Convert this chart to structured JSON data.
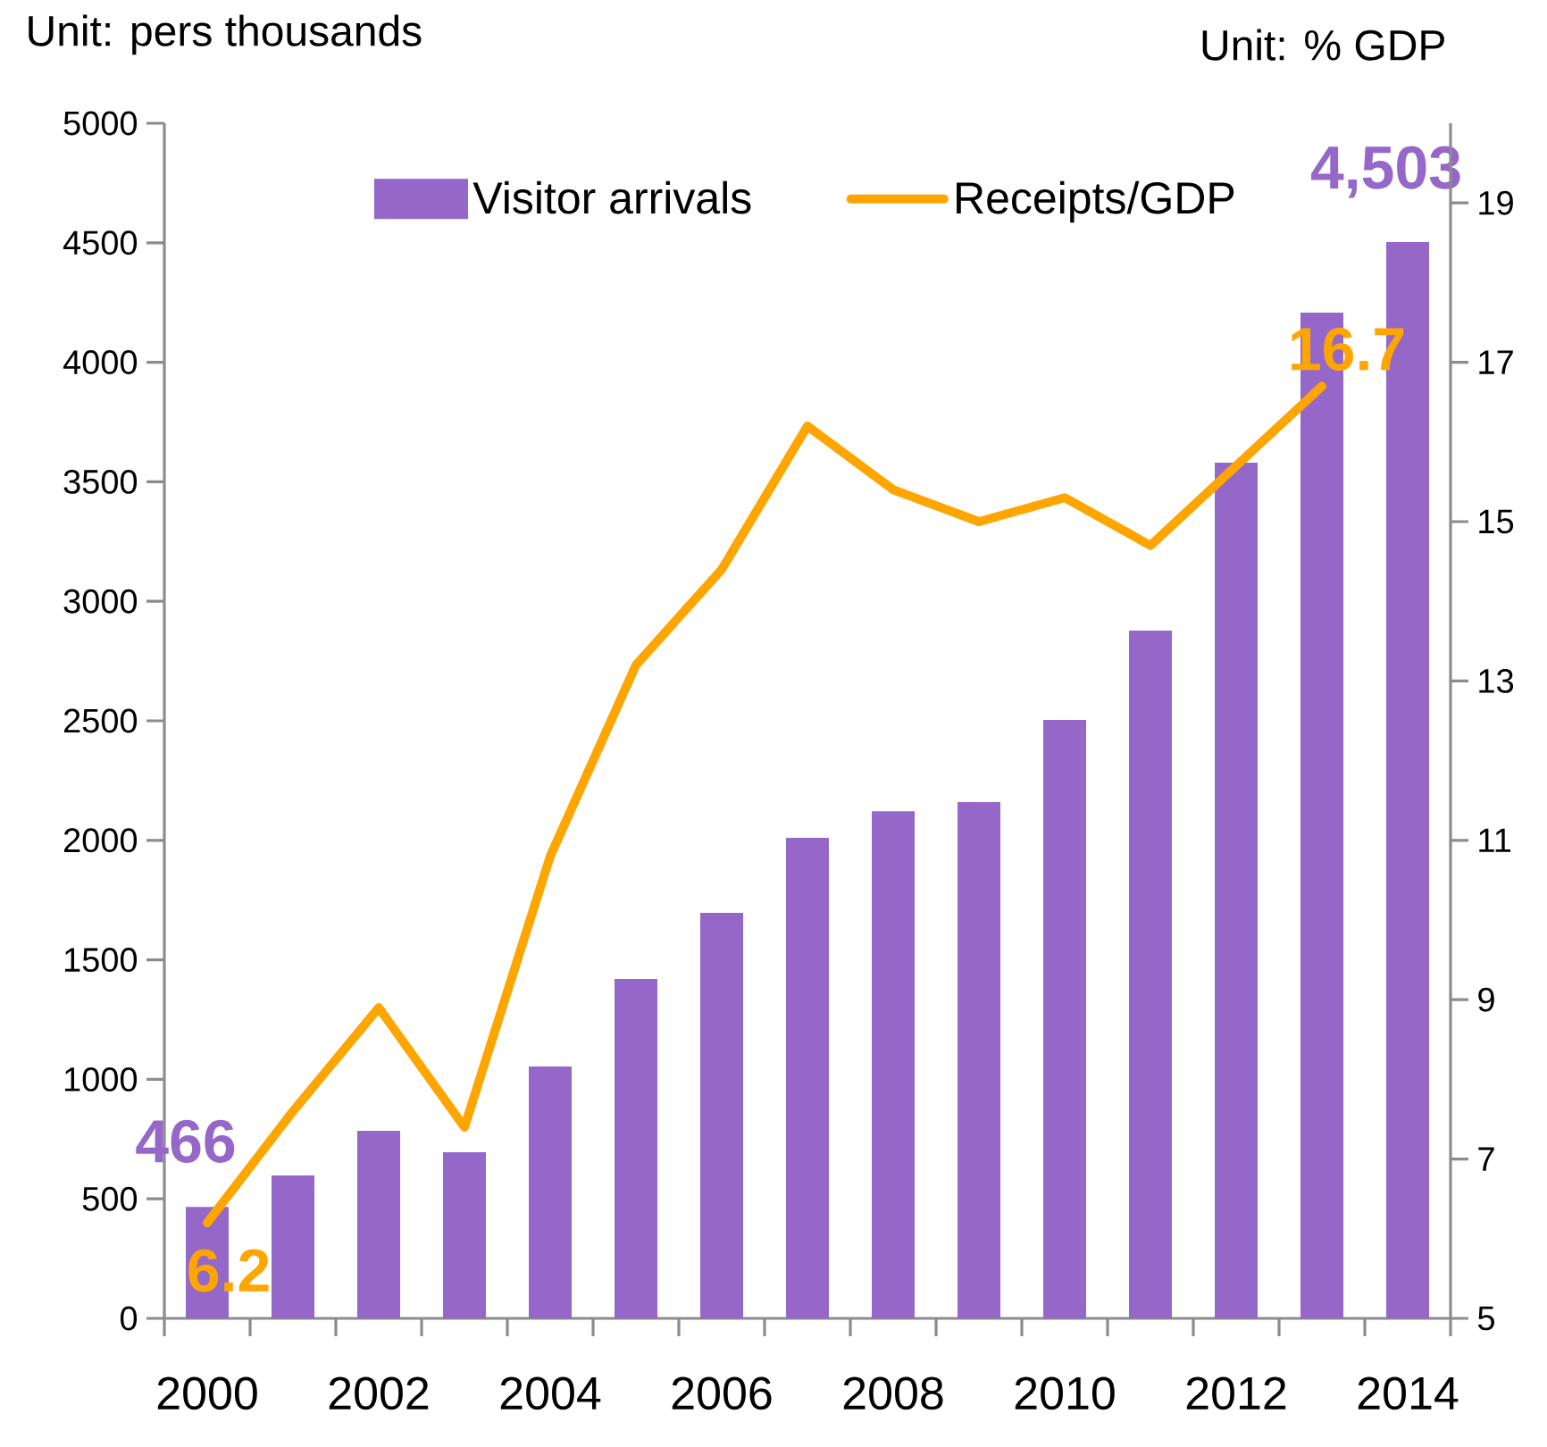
{
  "chart_data": {
    "type": "bar",
    "ylabel": "Unit: pers thousands",
    "y2label": "Unit: % GDP",
    "categories": [
      "2000",
      null,
      "2002",
      null,
      "2004",
      null,
      "2006",
      null,
      "2008",
      null,
      "2010",
      null,
      "2012",
      null,
      "2014"
    ],
    "series": [
      {
        "name": "Visitor arrivals",
        "color": "#9467c9",
        "values": [
          466,
          598,
          785,
          695,
          1054,
          1420,
          1697,
          2010,
          2122,
          2160,
          2504,
          2877,
          3580,
          4208,
          4503
        ],
        "value_labels": [
          "466",
          null,
          null,
          null,
          null,
          null,
          null,
          null,
          null,
          null,
          null,
          null,
          null,
          null,
          "4,503"
        ]
      },
      {
        "name": "Receipts/GDP",
        "type": "line",
        "axis": "y2",
        "color": "#ffa500",
        "values": [
          6.2,
          7.6,
          8.9,
          7.4,
          10.8,
          13.2,
          14.4,
          16.2,
          15.4,
          15.0,
          15.3,
          14.7,
          15.7,
          16.7,
          null
        ],
        "value_labels": [
          "6.2",
          null,
          null,
          null,
          null,
          null,
          null,
          null,
          null,
          null,
          null,
          null,
          null,
          "16.7",
          null
        ]
      }
    ],
    "ylim": [
      0,
      5000
    ],
    "yticks": [
      0,
      500,
      1000,
      1500,
      2000,
      2500,
      3000,
      3500,
      4000,
      4500,
      5000
    ],
    "y2lim": [
      5,
      20
    ],
    "y2ticks": [
      5,
      7,
      9,
      11,
      13,
      15,
      17,
      19
    ],
    "legend": "top"
  }
}
